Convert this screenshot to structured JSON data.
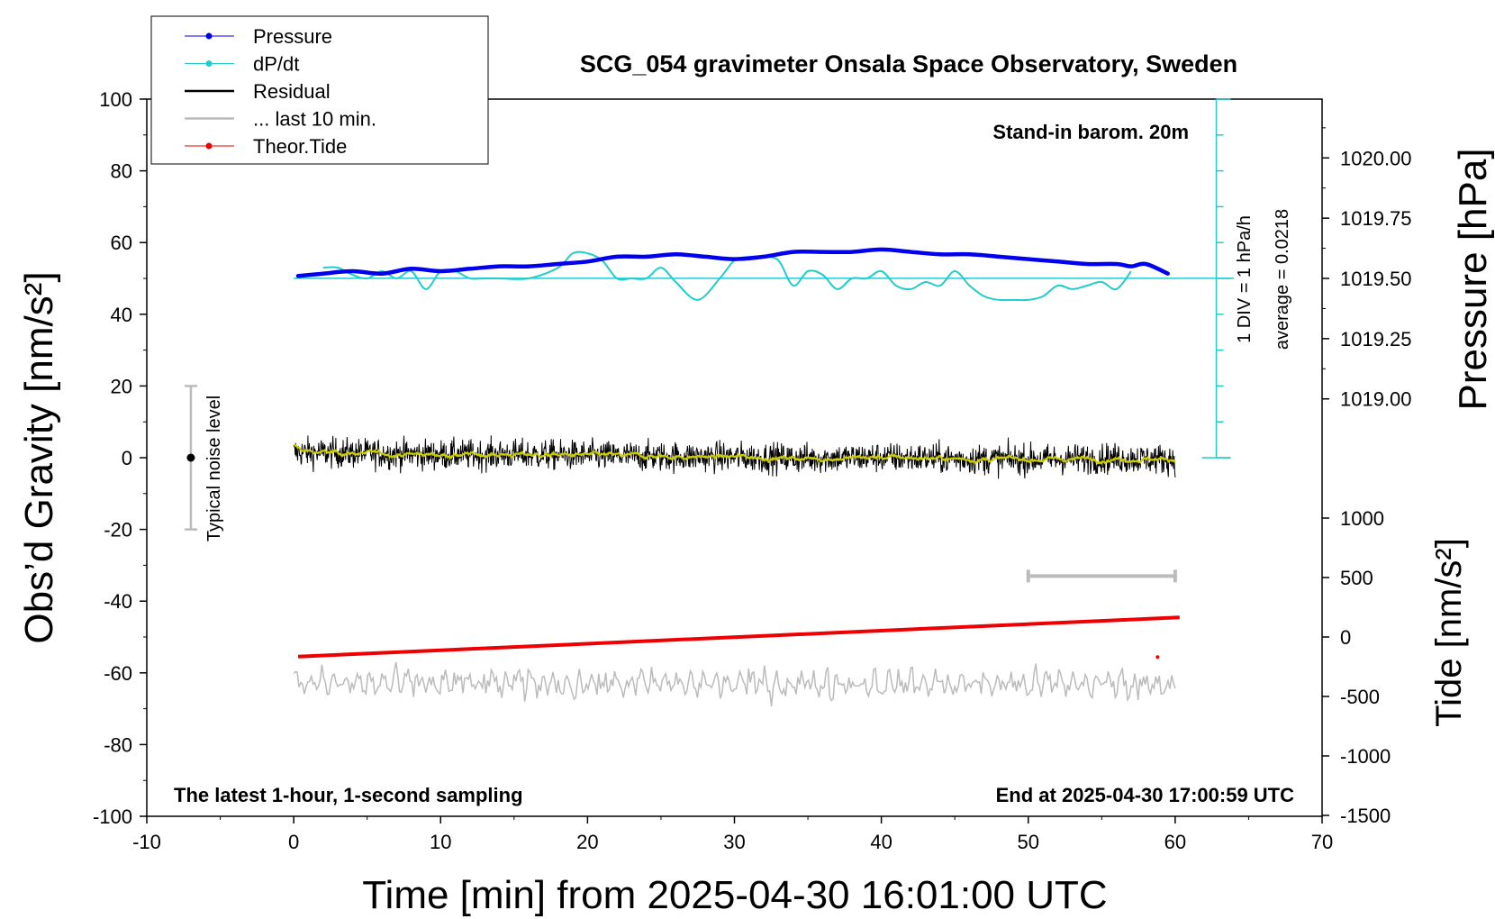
{
  "chart_data": {
    "type": "line",
    "title": "SCG_054 gravimeter Onsala Space Observatory, Sweden",
    "xlabel": "Time [min] from 2025-04-30 16:01:00 UTC",
    "ylabel_left": "Obs’d Gravity [nm/s²]",
    "ylabel_right_pressure": "Pressure [hPa]",
    "ylabel_right_tide": "Tide [nm/s²]",
    "xlim": [
      -10,
      70
    ],
    "ylim_left": [
      -100,
      100
    ],
    "xticks": [
      "-10",
      "0",
      "10",
      "20",
      "30",
      "40",
      "50",
      "60",
      "70"
    ],
    "yticks_left": [
      "100",
      "80",
      "60",
      "40",
      "20",
      "0",
      "-20",
      "-40",
      "-60",
      "-80",
      "-100"
    ],
    "pressure_ticks": [
      "1020.00",
      "1019.75",
      "1019.50",
      "1019.25",
      "1019.00"
    ],
    "tide_ticks": [
      "1000",
      "500",
      "0",
      "-500",
      "-1000",
      "-1500"
    ],
    "legend": {
      "placement": "top-left",
      "entries": [
        {
          "label": "Pressure",
          "color": "#0000ee",
          "marker": "dot"
        },
        {
          "label": "dP/dt",
          "color": "#22cccc",
          "marker": "dot"
        },
        {
          "label": "Residual",
          "color": "#000000",
          "marker": "none"
        },
        {
          "label": "... last 10 min.",
          "color": "#bbbbbb",
          "marker": "none"
        },
        {
          "label": "Theor.Tide",
          "color": "#ee0000",
          "marker": "dot"
        }
      ]
    },
    "annotations": {
      "barometer": "Stand-in barom. 20m",
      "div_note": "1 DIV = 1 hPa/h",
      "average": "average = 0.0218",
      "noise": "Typical noise level",
      "sampling": "The latest 1-hour, 1-second sampling",
      "end_time": "End at 2025-04-30 17:00:59 UTC"
    },
    "colors": {
      "pressure": "#0000ee",
      "dpdt": "#22cccc",
      "residual": "#000000",
      "residual_smooth": "#cccc00",
      "last10": "#bbbbbb",
      "tide": "#ee0000"
    },
    "series": {
      "pressure_hPa": {
        "x": [
          0.3,
          2,
          4,
          6,
          8,
          10,
          12,
          14,
          16,
          18,
          20,
          22,
          24,
          26,
          28,
          30,
          32,
          34,
          36,
          38,
          40,
          42,
          44,
          46,
          48,
          50,
          52,
          54,
          56,
          57,
          58,
          59.5
        ],
        "y": [
          1019.51,
          1019.52,
          1019.53,
          1019.52,
          1019.54,
          1019.53,
          1019.54,
          1019.55,
          1019.55,
          1019.56,
          1019.57,
          1019.59,
          1019.59,
          1019.6,
          1019.59,
          1019.58,
          1019.59,
          1019.61,
          1019.61,
          1019.61,
          1019.62,
          1019.61,
          1019.6,
          1019.6,
          1019.59,
          1019.58,
          1019.57,
          1019.56,
          1019.56,
          1019.55,
          1019.56,
          1019.52
        ]
      },
      "dpdt_gravity_units": {
        "x": [
          2,
          3,
          4,
          5,
          6,
          7,
          8,
          9,
          10,
          11,
          12,
          13,
          14,
          16,
          18,
          19,
          20,
          21,
          22,
          23,
          24,
          25,
          26,
          27.5,
          29,
          30,
          31,
          32,
          33,
          34,
          35,
          36,
          37,
          38,
          39,
          40,
          41,
          42,
          43,
          44,
          45,
          46,
          47,
          48,
          49,
          50,
          51,
          52,
          53,
          54,
          55,
          56,
          57
        ],
        "y": [
          53,
          53,
          51,
          50,
          52,
          50,
          52,
          47,
          52,
          52,
          50,
          50,
          50,
          50,
          53,
          57,
          57,
          55,
          50,
          50,
          50,
          53,
          49,
          44,
          50,
          55,
          56,
          56,
          55,
          48,
          52,
          51,
          47,
          50,
          50,
          52,
          48,
          47,
          49,
          48,
          52,
          48,
          45,
          44,
          44,
          44,
          45,
          48,
          47,
          48,
          49,
          47,
          52
        ]
      },
      "dpdt_average": 0.0218,
      "residual_nm_s2": {
        "x": [
          0,
          5,
          10,
          15,
          20,
          25,
          30,
          35,
          40,
          45,
          50,
          55,
          60
        ],
        "y": [
          1.5,
          1.2,
          0.8,
          0.9,
          0.6,
          0.3,
          0.2,
          -0.2,
          0.1,
          -0.3,
          -0.5,
          -0.2,
          -0.4
        ]
      },
      "tide_nm_s2": {
        "x": [
          0.3,
          60.3
        ],
        "y": [
          -165,
          165
        ]
      },
      "last10_offset_nm_s2": -63,
      "noise_bar": {
        "x": -7,
        "center": 0,
        "range": [
          -20,
          20
        ]
      },
      "last10_window": [
        50,
        60
      ]
    }
  }
}
